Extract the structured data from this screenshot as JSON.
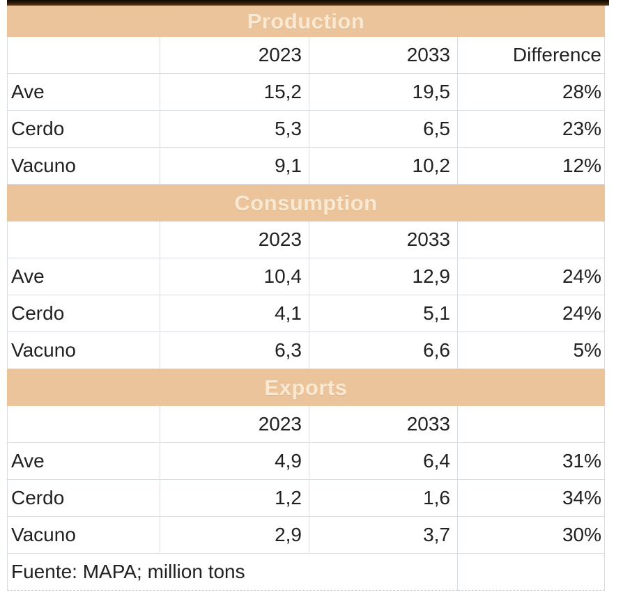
{
  "table": {
    "source_note": "Fuente: MAPA; million tons",
    "colors": {
      "band_background": "#ecc49b",
      "band_text": "#f9e9d3",
      "gridline": "#d8dde3",
      "cell_text": "#212121",
      "top_border": "#2a1806"
    },
    "sections": [
      {
        "title": "Production",
        "columns": [
          "",
          "2023",
          "2033",
          "Difference"
        ],
        "rows": [
          {
            "label": "Ave",
            "y2023": "15,2",
            "y2033": "19,5",
            "diff": "28%"
          },
          {
            "label": "Cerdo",
            "y2023": "5,3",
            "y2033": "6,5",
            "diff": "23%"
          },
          {
            "label": "Vacuno",
            "y2023": "9,1",
            "y2033": "10,2",
            "diff": "12%"
          }
        ]
      },
      {
        "title": "Consumption",
        "columns": [
          "",
          "2023",
          "2033",
          ""
        ],
        "rows": [
          {
            "label": "Ave",
            "y2023": "10,4",
            "y2033": "12,9",
            "diff": "24%"
          },
          {
            "label": "Cerdo",
            "y2023": "4,1",
            "y2033": "5,1",
            "diff": "24%"
          },
          {
            "label": "Vacuno",
            "y2023": "6,3",
            "y2033": "6,6",
            "diff": "5%"
          }
        ]
      },
      {
        "title": "Exports",
        "columns": [
          "",
          "2023",
          "2033",
          ""
        ],
        "rows": [
          {
            "label": "Ave",
            "y2023": "4,9",
            "y2033": "6,4",
            "diff": "31%"
          },
          {
            "label": "Cerdo",
            "y2023": "1,2",
            "y2033": "1,6",
            "diff": "34%"
          },
          {
            "label": "Vacuno",
            "y2023": "2,9",
            "y2033": "3,7",
            "diff": "30%"
          }
        ]
      }
    ]
  }
}
